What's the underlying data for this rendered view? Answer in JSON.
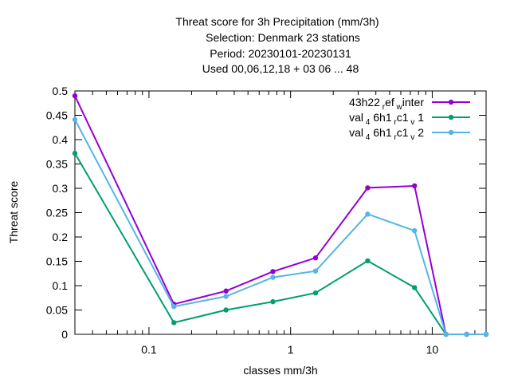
{
  "chart_data": {
    "type": "line",
    "title_lines": [
      "Threat score  for 3h Precipitation (mm/3h)",
      "Selection: Denmark     23 stations",
      "Period: 20230101-20230131",
      "Used  00,06,12,18  + 03 06 ... 48"
    ],
    "xlabel": "classes mm/3h",
    "ylabel": "Threat score",
    "x_scale": "log",
    "xlim": [
      0.03,
      24
    ],
    "ylim": [
      0,
      0.5
    ],
    "y_ticks": [
      "0",
      "0.05",
      "0.1",
      "0.15",
      "0.2",
      "0.25",
      "0.3",
      "0.35",
      "0.4",
      "0.45",
      "0.5"
    ],
    "x_ticks": [
      "0.1",
      "1",
      "10"
    ],
    "legend_position": "top-right",
    "x": [
      0.03,
      0.15,
      0.35,
      0.75,
      1.5,
      3.5,
      7.5,
      12.5,
      17.5,
      24
    ],
    "series": [
      {
        "name": "43h22 r ef w inter",
        "legend_text": "43h22 ref winter",
        "color": "#9400d3",
        "values": [
          0.49,
          0.062,
          0.089,
          0.129,
          0.157,
          0.301,
          0.305,
          0.0,
          0.0,
          0.0
        ]
      },
      {
        "name": "val 4 6h1 r c1 v 1",
        "legend_text": "val46h1rc1v1",
        "color": "#009e73",
        "values": [
          0.372,
          0.024,
          0.05,
          0.067,
          0.085,
          0.151,
          0.096,
          0.0,
          0.0,
          0.0
        ]
      },
      {
        "name": "val 4 6h1 r c1 v 2",
        "legend_text": "val46h1rc1v2",
        "color": "#56b4e9",
        "values": [
          0.441,
          0.057,
          0.078,
          0.117,
          0.13,
          0.247,
          0.213,
          0.0,
          0.0,
          0.0
        ]
      }
    ]
  }
}
